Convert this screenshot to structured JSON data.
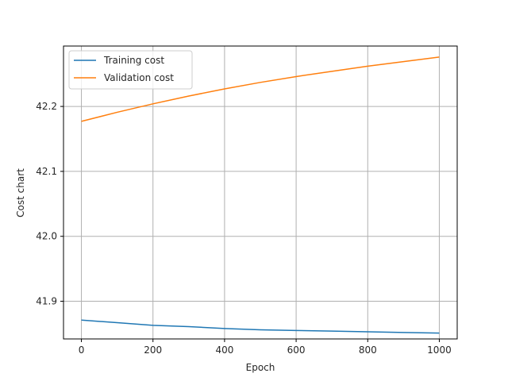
{
  "chart_data": {
    "type": "line",
    "title": "",
    "xlabel": "Epoch",
    "ylabel": "Cost chart",
    "xlim": [
      -50,
      1050
    ],
    "ylim": [
      41.842,
      42.293
    ],
    "xticks": [
      0,
      200,
      400,
      600,
      800,
      1000
    ],
    "xtick_labels": [
      "0",
      "200",
      "400",
      "600",
      "800",
      "1000"
    ],
    "yticks": [
      41.9,
      42.0,
      42.1,
      42.2
    ],
    "ytick_labels": [
      "41.9",
      "42.0",
      "42.1",
      "42.2"
    ],
    "grid": true,
    "legend_position": "top-left",
    "series": [
      {
        "name": "Training cost",
        "color": "#1f77b4",
        "x": [
          0,
          100,
          200,
          300,
          400,
          500,
          600,
          700,
          800,
          900,
          1000
        ],
        "values": [
          41.871,
          41.867,
          41.863,
          41.861,
          41.858,
          41.856,
          41.855,
          41.854,
          41.853,
          41.852,
          41.851
        ]
      },
      {
        "name": "Validation cost",
        "color": "#ff7f0e",
        "x": [
          0,
          100,
          200,
          300,
          400,
          500,
          600,
          700,
          800,
          900,
          1000
        ],
        "values": [
          42.177,
          42.191,
          42.204,
          42.216,
          42.227,
          42.237,
          42.246,
          42.254,
          42.262,
          42.269,
          42.276
        ]
      }
    ]
  }
}
